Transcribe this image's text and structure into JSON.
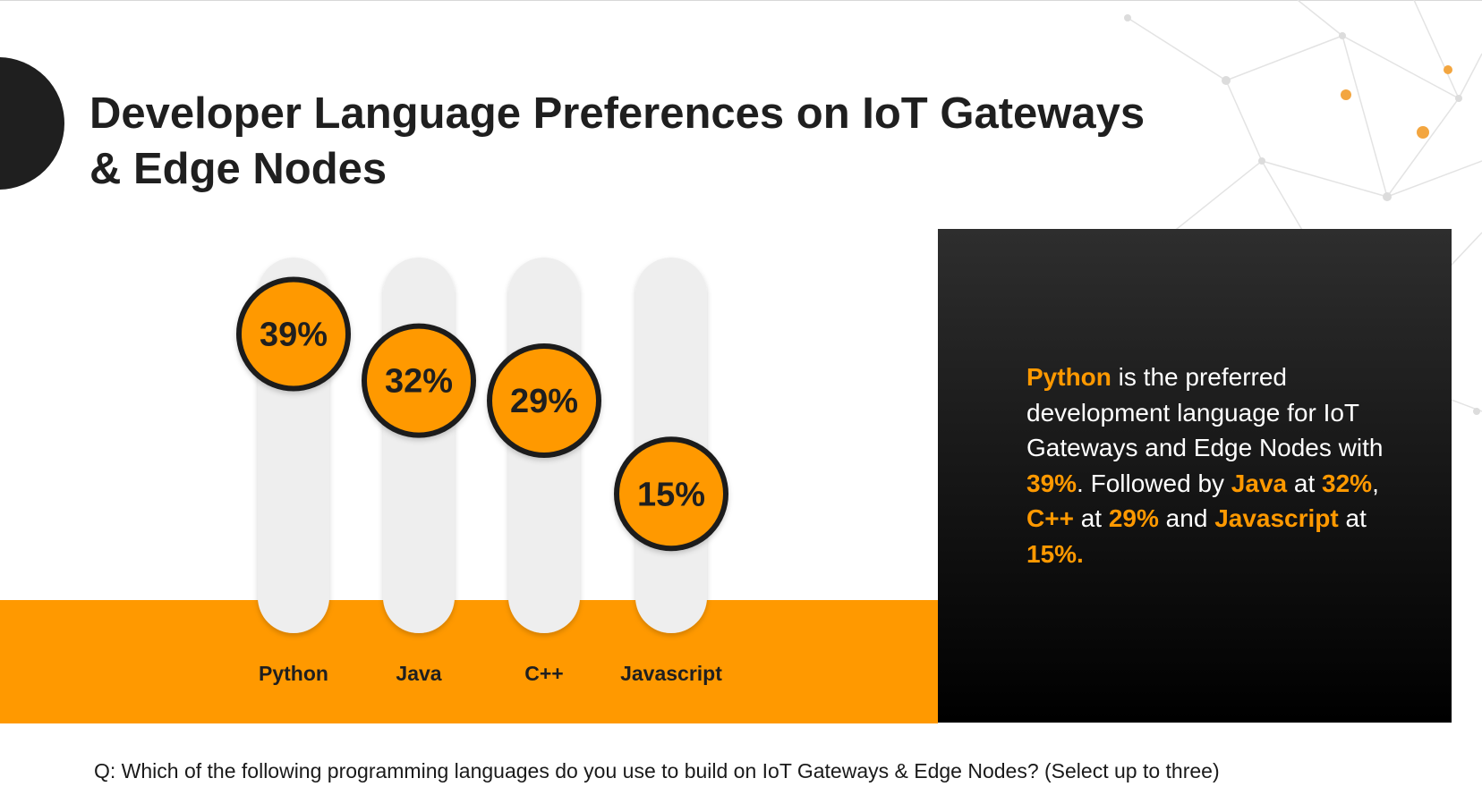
{
  "title_line1": "Developer Language Preferences on IoT Gateways",
  "title_line2": "& Edge Nodes",
  "chart_data": {
    "type": "bar",
    "categories": [
      "Python",
      "Java",
      "C++",
      "Javascript"
    ],
    "values": [
      39,
      32,
      29,
      15
    ],
    "value_labels": [
      "39%",
      "32%",
      "29%",
      "15%"
    ],
    "title": "Developer Language Preferences on IoT Gateways & Edge Nodes",
    "unit": "%",
    "ylim": [
      0,
      60
    ],
    "colors": {
      "marker": "#ff9900",
      "track": "#eeeeee",
      "band": "#ff9900",
      "outline": "#1f1f1f"
    }
  },
  "panel": {
    "python": "Python",
    "t1": " is the preferred development language for IoT Gateways and Edge Nodes with ",
    "python_pct": "39%",
    "t2": ". Followed by ",
    "java": "Java",
    "t3": " at ",
    "java_pct": "32%",
    "t4": ", ",
    "cpp": "C++",
    "t5": " at ",
    "cpp_pct": "29%",
    "t6": " and ",
    "javascript": "Javascript",
    "t7": " at ",
    "javascript_pct": "15%",
    "t8": "."
  },
  "question": "Q: Which of the following programming languages do you use to build on IoT Gateways & Edge Nodes? (Select up to three)"
}
